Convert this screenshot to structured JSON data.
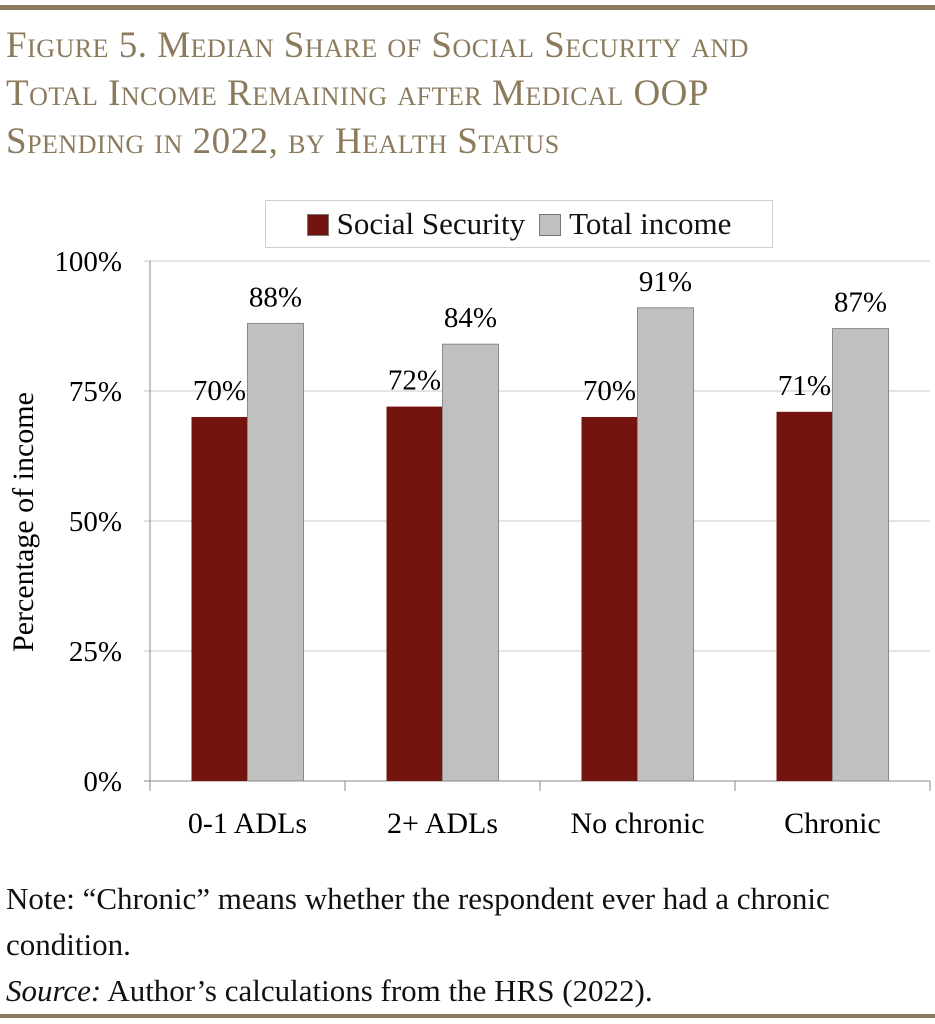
{
  "title": "Figure 5. Median Share of Social Security and Total Income Remaining after Medical OOP Spending in 2022, by Health Status",
  "title_lines": [
    "Figure 5. Median Share of Social Security and",
    "Total Income Remaining after Medical OOP",
    "Spending in 2022, by Health Status"
  ],
  "note": "Note: “Chronic” means whether the respondent ever had a chronic condition.",
  "source_label": "Source:",
  "source_text": " Author’s calculations from the HRS (2022).",
  "colors": {
    "accent": "#8c7b5f",
    "social_security": "#74140f",
    "total_income": "#c0c0c0"
  },
  "chart_data": {
    "type": "bar",
    "categories": [
      "0-1 ADLs",
      "2+ ADLs",
      "No chronic",
      "Chronic"
    ],
    "series": [
      {
        "name": "Social Security",
        "values": [
          70,
          72,
          70,
          71
        ],
        "labels": [
          "70%",
          "72%",
          "70%",
          "71%"
        ],
        "color": "#74140f"
      },
      {
        "name": "Total income",
        "values": [
          88,
          84,
          91,
          87
        ],
        "labels": [
          "88%",
          "84%",
          "91%",
          "87%"
        ],
        "color": "#c0c0c0"
      }
    ],
    "ylabel": "Percentage of income",
    "xlabel": "",
    "ylim": [
      0,
      100
    ],
    "yticks": [
      0,
      25,
      50,
      75,
      100
    ],
    "ytick_labels": [
      "0%",
      "25%",
      "50%",
      "75%",
      "100%"
    ],
    "grid": true,
    "legend": "top"
  }
}
